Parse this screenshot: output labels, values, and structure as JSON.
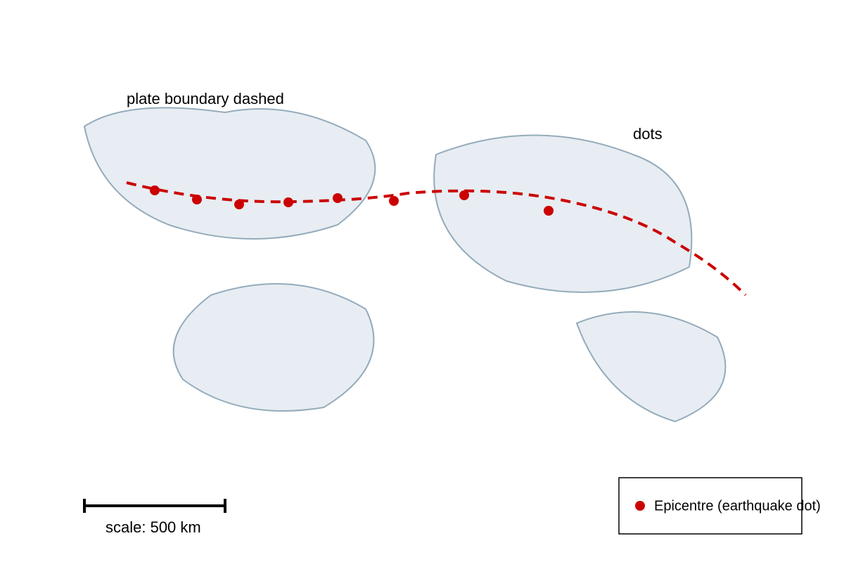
{
  "annotations": {
    "boundary": "plate boundary dashed",
    "dots": "dots"
  },
  "scale_bar": {
    "label": "scale: 500 km"
  },
  "legend": {
    "items": [
      {
        "label": "Epicentre (earthquake dot)"
      }
    ]
  }
}
